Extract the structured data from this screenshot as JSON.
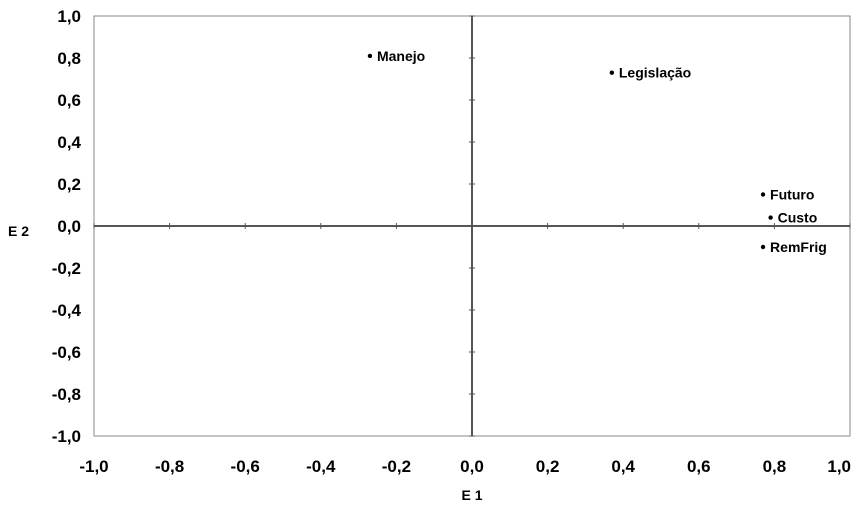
{
  "chart_data": {
    "type": "scatter",
    "title": "",
    "xlabel": "E 1",
    "ylabel": "E 2",
    "xlim": [
      -1.0,
      1.0
    ],
    "ylim": [
      -1.0,
      1.0
    ],
    "grid": false,
    "legend": "none",
    "x_ticks": [
      "-1,0",
      "-0,8",
      "-0,6",
      "-0,4",
      "-0,2",
      "0,0",
      "0,2",
      "0,4",
      "0,6",
      "0,8",
      "1,0"
    ],
    "y_ticks": [
      "1,0",
      "0,8",
      "0,6",
      "0,4",
      "0,2",
      "0,0",
      "-0,2",
      "-0,4",
      "-0,6",
      "-0,8",
      "-1,0"
    ],
    "points": [
      {
        "label": "Manejo",
        "x": -0.27,
        "y": 0.81
      },
      {
        "label": "Legislação",
        "x": 0.37,
        "y": 0.73
      },
      {
        "label": "Futuro",
        "x": 0.77,
        "y": 0.15
      },
      {
        "label": "Custo",
        "x": 0.79,
        "y": 0.04
      },
      {
        "label": "RemFrig",
        "x": 0.77,
        "y": -0.1
      }
    ]
  }
}
